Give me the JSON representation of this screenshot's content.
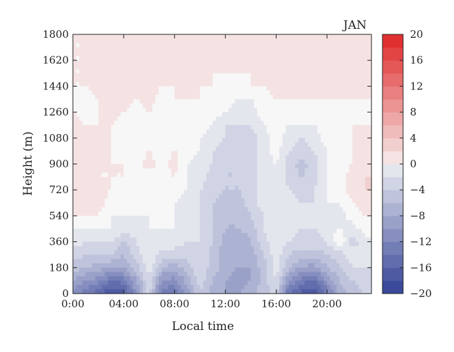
{
  "chart_data": {
    "type": "heatmap",
    "title": "JAN",
    "xlabel": "Local time",
    "ylabel": "Height (m)",
    "x_tick_labels": [
      "0:00",
      "04:00",
      "08:00",
      "12:00",
      "16:00",
      "20:00"
    ],
    "x_ticks_hours": [
      0,
      4,
      8,
      12,
      16,
      20
    ],
    "xlim_hours": [
      0,
      23.5
    ],
    "y_ticks": [
      0,
      180,
      360,
      540,
      720,
      900,
      1080,
      1260,
      1440,
      1620,
      1800
    ],
    "ylim": [
      0,
      1800
    ],
    "colorbar": {
      "ticks": [
        -20,
        -16,
        -12,
        -8,
        -4,
        0,
        4,
        8,
        12,
        16,
        20
      ],
      "tick_labels": [
        "−20",
        "−16",
        "−12",
        "−8",
        "−4",
        "0",
        "4",
        "8",
        "12",
        "16",
        "20"
      ],
      "range": [
        -20,
        20
      ],
      "colors": {
        "low": "#3b4a9a",
        "mid": "#f7f7f7",
        "high": "#e03030"
      }
    },
    "x_hours": [
      0,
      1,
      2,
      3,
      4,
      5,
      6,
      7,
      8,
      9,
      10,
      11,
      12,
      13,
      14,
      15,
      16,
      17,
      18,
      19,
      20,
      21,
      22,
      23
    ],
    "y_heights": [
      0,
      90,
      180,
      270,
      360,
      450,
      540,
      630,
      720,
      810,
      900,
      990,
      1080,
      1170,
      1260,
      1350,
      1440,
      1530,
      1620,
      1710,
      1800
    ],
    "values": [
      [
        -12,
        -14,
        -16,
        -19,
        -18,
        -11,
        -4,
        -14,
        -15,
        -10,
        -5,
        -8,
        -9,
        -9,
        -8,
        -6,
        -4,
        -15,
        -18,
        -19,
        -14,
        -8,
        -6,
        -5
      ],
      [
        -9,
        -11,
        -12,
        -15,
        -14,
        -9,
        -3,
        -11,
        -12,
        -8,
        -4,
        -7,
        -9,
        -10,
        -9,
        -6,
        -3,
        -11,
        -14,
        -15,
        -11,
        -7,
        -5,
        -4
      ],
      [
        -6,
        -7,
        -8,
        -9,
        -9,
        -6,
        -2,
        -7,
        -8,
        -6,
        -3,
        -6,
        -8,
        -9,
        -9,
        -6,
        -2,
        -7,
        -9,
        -10,
        -7,
        -5,
        -3,
        -3
      ],
      [
        -4,
        -5,
        -5,
        -5,
        -7,
        -4,
        -1,
        -4,
        -4,
        -4,
        -3,
        -6,
        -8,
        -9,
        -8,
        -5,
        -2,
        -5,
        -6,
        -6,
        -5,
        -4,
        -2,
        -3
      ],
      [
        -2,
        -3,
        -3,
        -3,
        -5,
        -3,
        -1,
        -2,
        -2,
        -3,
        -3,
        -5,
        -8,
        -9,
        -7,
        -4,
        -1,
        -3,
        -4,
        -4,
        -3,
        1,
        -4,
        -2
      ],
      [
        -1,
        -1,
        -1,
        -1,
        -2,
        -2,
        -1,
        -1,
        -1,
        -2,
        -3,
        -5,
        -7,
        -7,
        -6,
        -3,
        -1,
        -2,
        -3,
        -3,
        -2,
        -1,
        -2,
        0
      ],
      [
        1,
        1,
        1,
        -1,
        -1,
        -1,
        -1,
        0,
        -1,
        -2,
        -3,
        -5,
        -7,
        -7,
        -5,
        -3,
        -1,
        -2,
        -3,
        -3,
        -1,
        -2,
        0,
        1
      ],
      [
        2,
        2,
        2,
        0,
        -1,
        -1,
        0,
        0,
        -1,
        -2,
        -3,
        -5,
        -6,
        -6,
        -4,
        -2,
        -1,
        -2,
        -3,
        -3,
        -1,
        -1,
        1,
        2
      ],
      [
        2,
        2,
        2,
        1,
        0,
        0,
        1,
        0,
        0,
        -1,
        -3,
        -4,
        -5,
        -5,
        -4,
        -2,
        -1,
        -3,
        -4,
        -3,
        -1,
        0,
        2,
        3
      ],
      [
        2,
        2,
        1,
        1,
        1,
        0,
        0,
        0,
        1,
        -1,
        -2,
        -4,
        -5,
        -5,
        -4,
        -2,
        -1,
        -4,
        -5,
        -4,
        -1,
        0,
        2,
        3
      ],
      [
        2,
        2,
        1,
        1,
        1,
        0,
        2,
        0,
        2,
        -1,
        -2,
        -3,
        -5,
        -5,
        -4,
        -2,
        -1,
        -4,
        -6,
        -4,
        -1,
        0,
        1,
        2
      ],
      [
        2,
        1,
        1,
        1,
        0,
        0,
        1,
        0,
        1,
        0,
        -1,
        -3,
        -4,
        -5,
        -4,
        -2,
        0,
        -3,
        -4,
        -3,
        -1,
        0,
        1,
        1
      ],
      [
        2,
        1,
        1,
        1,
        0,
        0,
        0,
        0,
        1,
        0,
        -1,
        -2,
        -3,
        -4,
        -4,
        -2,
        0,
        -2,
        -3,
        -2,
        0,
        0,
        1,
        1
      ],
      [
        2,
        1,
        1,
        1,
        0,
        0,
        1,
        0,
        1,
        0,
        0,
        -1,
        -3,
        -3,
        -3,
        -1,
        0,
        -1,
        -1,
        -1,
        0,
        0,
        1,
        1
      ],
      [
        1,
        0,
        1,
        2,
        1,
        0,
        1,
        0,
        0,
        0,
        1,
        0,
        -1,
        -2,
        -2,
        0,
        0,
        0,
        0,
        0,
        0,
        0,
        0,
        0
      ],
      [
        1,
        0,
        1,
        2,
        2,
        1,
        2,
        0,
        1,
        1,
        1,
        0,
        0,
        -1,
        -1,
        0,
        1,
        1,
        1,
        1,
        1,
        1,
        1,
        1
      ],
      [
        1,
        1,
        2,
        2,
        2,
        1,
        2,
        1,
        1,
        2,
        1,
        1,
        0,
        0,
        1,
        1,
        2,
        2,
        2,
        2,
        2,
        2,
        2,
        1
      ],
      [
        1,
        1,
        2,
        3,
        2,
        1,
        1,
        1,
        1,
        1,
        1,
        1,
        1,
        1,
        1,
        1,
        2,
        2,
        3,
        2,
        3,
        2,
        2,
        2
      ],
      [
        1,
        1,
        1,
        2,
        2,
        1,
        1,
        1,
        1,
        1,
        1,
        1,
        1,
        1,
        1,
        1,
        2,
        2,
        3,
        2,
        3,
        2,
        2,
        2
      ],
      [
        1,
        1,
        1,
        1,
        1,
        1,
        1,
        1,
        1,
        1,
        1,
        1,
        1,
        1,
        1,
        1,
        2,
        2,
        2,
        2,
        2,
        2,
        2,
        2
      ],
      [
        1,
        1,
        1,
        1,
        1,
        1,
        1,
        1,
        1,
        1,
        1,
        1,
        1,
        1,
        1,
        1,
        2,
        2,
        2,
        2,
        2,
        2,
        1,
        1
      ]
    ]
  }
}
